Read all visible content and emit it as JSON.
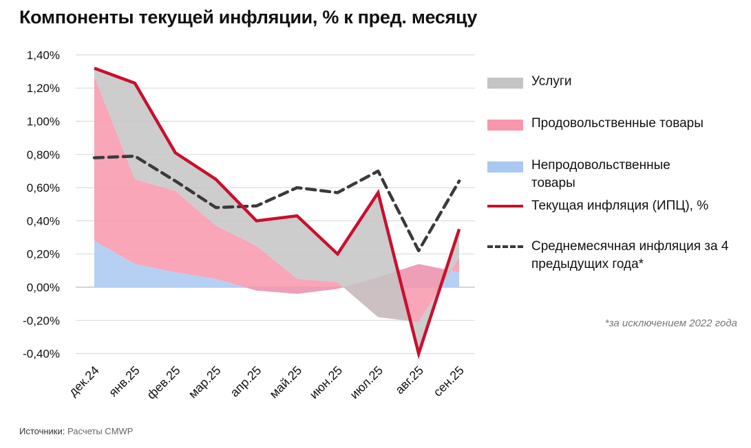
{
  "title": "Компоненты текущей инфляции, % к пред. месяцу",
  "footnote": "*за исключением 2022 года",
  "source": {
    "label": "Источники:",
    "value": "Расчеты CMWP"
  },
  "colors": {
    "services": "#c4c4c4",
    "food": "#f797ab",
    "nonfood": "#a9c8f2",
    "cpi": "#c8102e",
    "avg": "#3a3a3a"
  },
  "chart_data": {
    "type": "area",
    "title": "Компоненты текущей инфляции, % к пред. месяцу",
    "categories": [
      "дек.24",
      "янв.25",
      "фев.25",
      "мар.25",
      "апр.25",
      "май.25",
      "июн.25",
      "июл.25",
      "авг.25",
      "сен.25"
    ],
    "ylim": [
      -0.4,
      1.4
    ],
    "yticks": [
      "-0,40%",
      "-0,20%",
      "0,00%",
      "0,20%",
      "0,40%",
      "0,60%",
      "0,80%",
      "1,00%",
      "1,20%",
      "1,40%"
    ],
    "ytick_values": [
      -0.4,
      -0.2,
      0,
      0.2,
      0.4,
      0.6,
      0.8,
      1.0,
      1.2,
      1.4
    ],
    "grid": true,
    "legend_position": "right",
    "series": [
      {
        "name": "Непродовольственные товары",
        "type": "stacked-area",
        "values": [
          0.28,
          0.14,
          0.09,
          0.05,
          -0.02,
          -0.04,
          -0.01,
          0.06,
          0.14,
          0.09
        ]
      },
      {
        "name": "Продовольственные товары",
        "type": "stacked-area",
        "values": [
          0.99,
          0.51,
          0.49,
          0.32,
          0.27,
          0.09,
          0.04,
          -0.24,
          -0.35,
          0.09
        ]
      },
      {
        "name": "Услуги",
        "type": "stacked-area",
        "values": [
          0.05,
          0.58,
          0.23,
          0.28,
          0.15,
          0.38,
          0.17,
          0.75,
          -0.19,
          0.17
        ]
      },
      {
        "name": "Текущая инфляция (ИПЦ), %",
        "type": "line",
        "values": [
          1.32,
          1.23,
          0.81,
          0.65,
          0.4,
          0.43,
          0.2,
          0.57,
          -0.4,
          0.35
        ]
      },
      {
        "name": "Среднемесячная инфляция за 4 предыдущих года*",
        "type": "dashed-line",
        "values": [
          0.78,
          0.79,
          0.64,
          0.48,
          0.49,
          0.6,
          0.57,
          0.7,
          0.22,
          0.64
        ]
      }
    ]
  },
  "legend": [
    {
      "label": "Услуги"
    },
    {
      "label": "Продовольственные товары"
    },
    {
      "label": "Непродовольственные товары"
    },
    {
      "label": "Текущая инфляция (ИПЦ), %"
    },
    {
      "label": "Среднемесячная инфляция за 4 предыдущих года*"
    }
  ]
}
